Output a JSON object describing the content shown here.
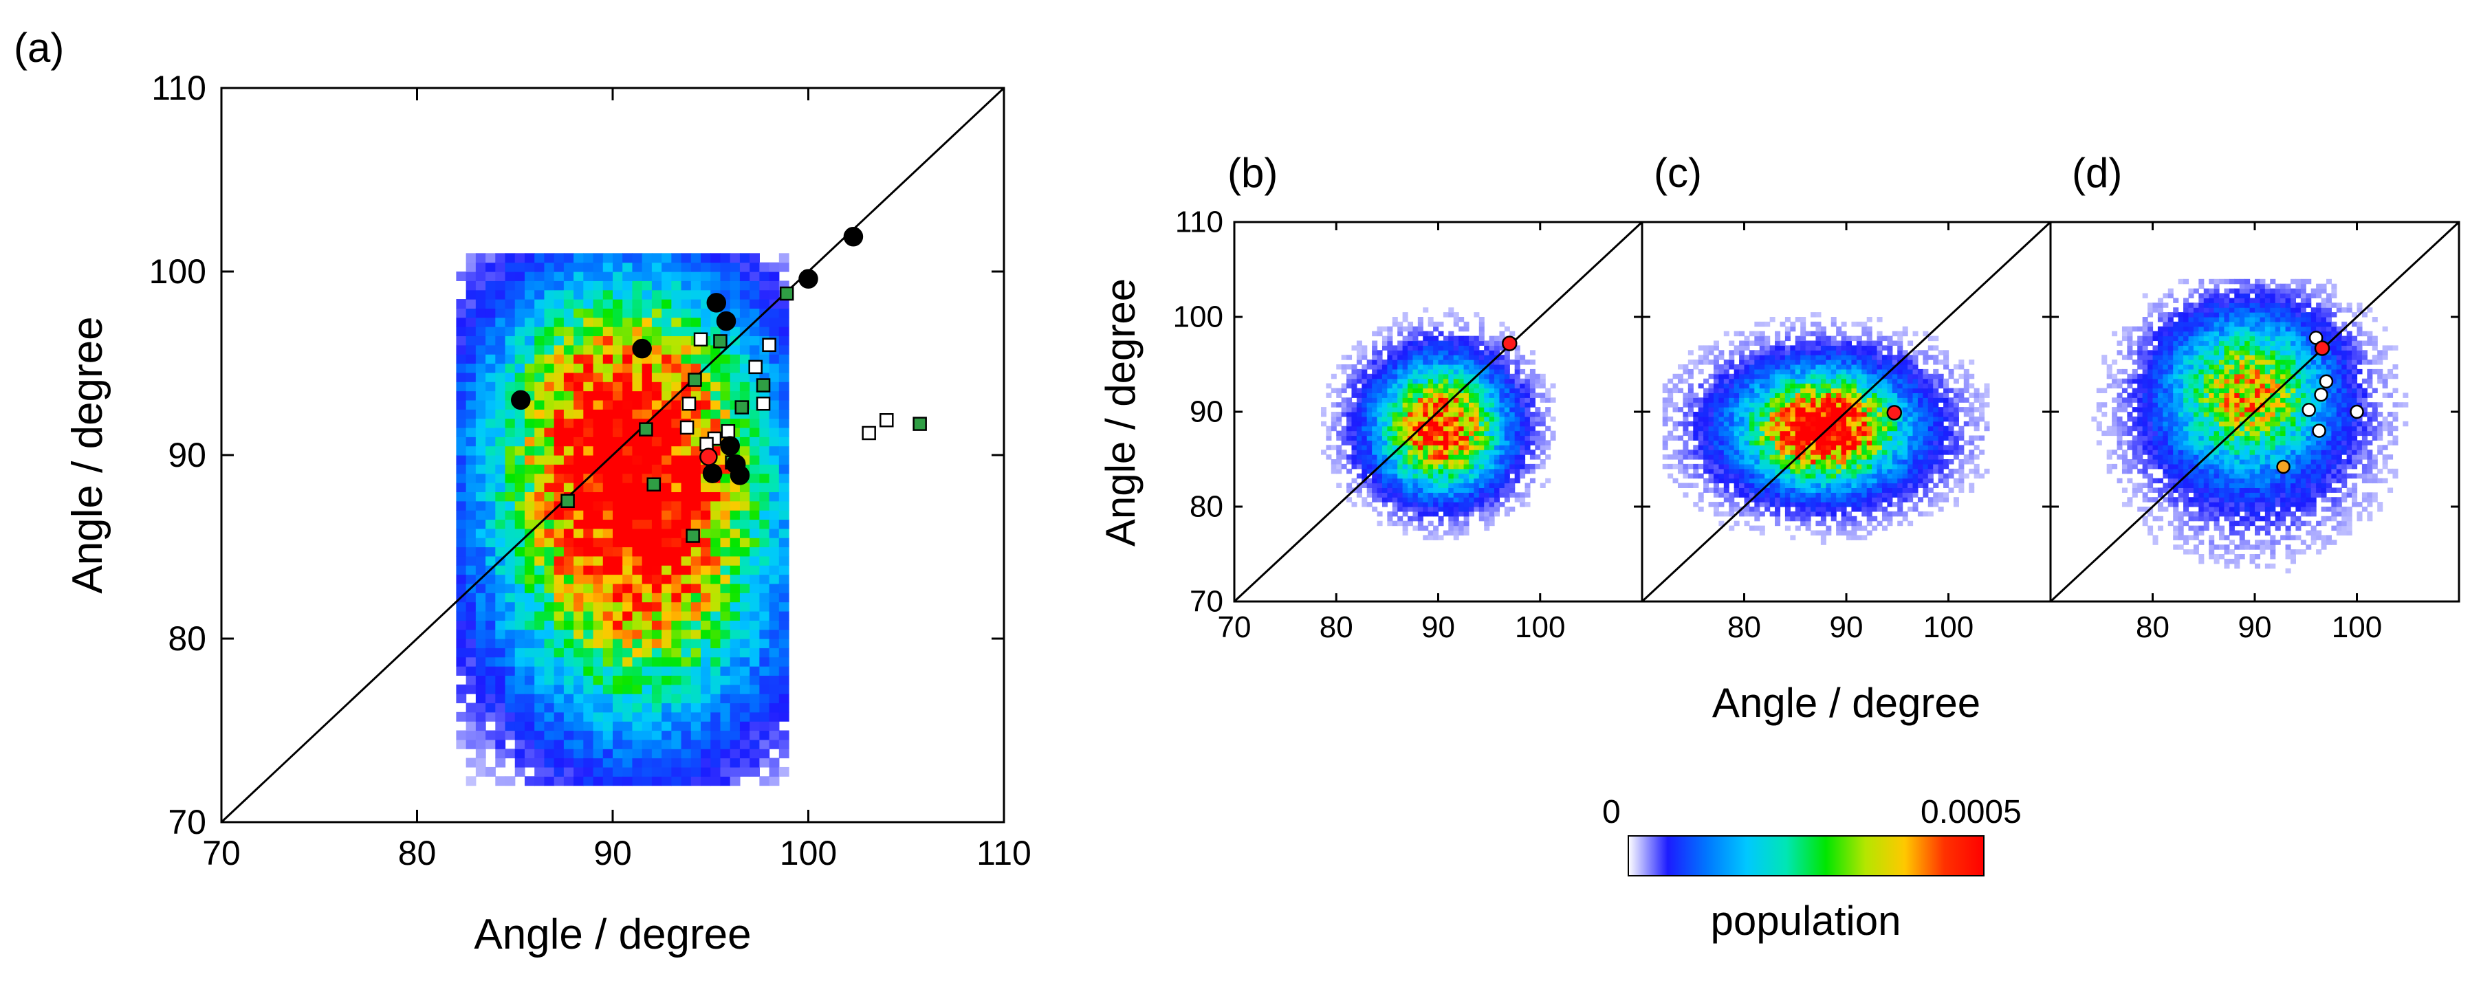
{
  "chart_data": [
    {
      "type": "heatmap",
      "panel_label": "(a)",
      "xlabel": "Angle / degree",
      "ylabel": "Angle / degree",
      "xlim": [
        70,
        110
      ],
      "ylim": [
        70,
        110
      ],
      "xticks": [
        "70",
        "80",
        "90",
        "100",
        "110"
      ],
      "yticks": [
        "70",
        "80",
        "90",
        "100",
        "110"
      ],
      "diagonal": true,
      "density_blobs": [
        {
          "cx": 91,
          "cy": 86,
          "sx": 4.2,
          "sy": 6.5,
          "peak": 0.85
        },
        {
          "cx": 90,
          "cy": 93,
          "sx": 4.0,
          "sy": 4.5,
          "peak": 0.45
        },
        {
          "cx": 91,
          "cy": 87,
          "sx": 6.5,
          "sy": 9.0,
          "peak": 0.22
        }
      ],
      "density_range": {
        "x": [
          82,
          99
        ],
        "y": [
          72,
          101
        ]
      },
      "markers": {
        "black_circles": [
          [
            102.3,
            101.9
          ],
          [
            100,
            99.6
          ],
          [
            95.3,
            98.3
          ],
          [
            95.8,
            97.3
          ],
          [
            91.5,
            95.8
          ],
          [
            85.3,
            93
          ],
          [
            95.1,
            89
          ],
          [
            96.3,
            89.5
          ],
          [
            96.5,
            88.9
          ],
          [
            96,
            90.5
          ]
        ],
        "red_circles": [
          [
            94.9,
            89.9
          ]
        ],
        "green_squares": [
          [
            98.9,
            98.8
          ],
          [
            95.5,
            96.2
          ],
          [
            94.2,
            94.1
          ],
          [
            97.7,
            93.8
          ],
          [
            96.6,
            92.6
          ],
          [
            91.7,
            91.4
          ],
          [
            105.7,
            91.7
          ],
          [
            96.1,
            89.6
          ],
          [
            92.1,
            88.4
          ],
          [
            87.7,
            87.5
          ],
          [
            94.1,
            85.6
          ]
        ],
        "white_squares": [
          [
            94.5,
            96.3
          ],
          [
            98,
            96
          ],
          [
            97.3,
            94.8
          ],
          [
            93.9,
            92.8
          ],
          [
            97.7,
            92.8
          ],
          [
            93.8,
            91.5
          ],
          [
            95.9,
            91.3
          ],
          [
            95.2,
            90.9
          ],
          [
            94.8,
            90.6
          ],
          [
            104,
            91.9
          ],
          [
            103.1,
            91.2
          ]
        ]
      }
    },
    {
      "type": "heatmap",
      "panel_label": "(b)",
      "xlim": [
        70,
        110
      ],
      "ylim": [
        70,
        110
      ],
      "xticks": [
        "70",
        "80",
        "90",
        "100"
      ],
      "yticks": [
        "70",
        "80",
        "90",
        "100",
        "110"
      ],
      "diagonal": true,
      "density_blobs": [
        {
          "cx": 90,
          "cy": 88,
          "sx": 3.5,
          "sy": 3.8,
          "peak": 0.75
        },
        {
          "cx": 90,
          "cy": 88.5,
          "sx": 5.5,
          "sy": 5.5,
          "peak": 0.25
        }
      ],
      "density_range": {
        "x": [
          78,
          103
        ],
        "y": [
          76,
          101
        ]
      },
      "markers": {
        "red_circles": [
          [
            97,
            97.2
          ]
        ]
      }
    },
    {
      "type": "heatmap",
      "panel_label": "(c)",
      "xlim": [
        70,
        110
      ],
      "ylim": [
        70,
        110
      ],
      "xticks": [
        "80",
        "90",
        "100"
      ],
      "yticks": [],
      "diagonal": true,
      "density_blobs": [
        {
          "cx": 87.5,
          "cy": 88,
          "sx": 4.2,
          "sy": 3.2,
          "peak": 0.95
        },
        {
          "cx": 87.5,
          "cy": 88,
          "sx": 8.0,
          "sy": 5.5,
          "peak": 0.28
        }
      ],
      "density_range": {
        "x": [
          72,
          104
        ],
        "y": [
          75,
          101
        ]
      },
      "markers": {
        "red_circles": [
          [
            94.7,
            89.9
          ]
        ]
      }
    },
    {
      "type": "heatmap",
      "panel_label": "(d)",
      "xlim": [
        70,
        110
      ],
      "ylim": [
        70,
        110
      ],
      "xticks": [
        "80",
        "90",
        "100"
      ],
      "yticks": [],
      "diagonal": true,
      "density_blobs": [
        {
          "cx": 89,
          "cy": 92,
          "sx": 4.5,
          "sy": 4.5,
          "peak": 0.6
        },
        {
          "cx": 89.5,
          "cy": 89,
          "sx": 7.5,
          "sy": 8.0,
          "peak": 0.2
        }
      ],
      "density_range": {
        "x": [
          72,
          106
        ],
        "y": [
          72,
          104
        ]
      },
      "markers": {
        "red_circles": [
          [
            96.6,
            96.7
          ]
        ],
        "white_circles": [
          [
            96,
            97.8
          ],
          [
            97,
            93.2
          ],
          [
            96.5,
            91.8
          ],
          [
            95.3,
            90.2
          ],
          [
            100,
            90
          ],
          [
            96.3,
            88
          ]
        ],
        "orange_circles": [
          [
            92.8,
            84.2
          ]
        ]
      }
    }
  ],
  "shared_xlabel": "Angle / degree",
  "shared_ylabel": "Angle / degree",
  "colorbar": {
    "label": "population",
    "min_label": "0",
    "max_label": "0.0005",
    "colors": [
      "#ffffff",
      "#1c1cff",
      "#0078ff",
      "#00c8ff",
      "#00e6b4",
      "#00e600",
      "#b4e600",
      "#ffc800",
      "#ff3200",
      "#ff0000"
    ]
  },
  "marker_colors": {
    "black": "#000000",
    "red": "#ff1a1a",
    "green": "#2f9e44",
    "white": "#ffffff",
    "orange": "#f5a623"
  }
}
